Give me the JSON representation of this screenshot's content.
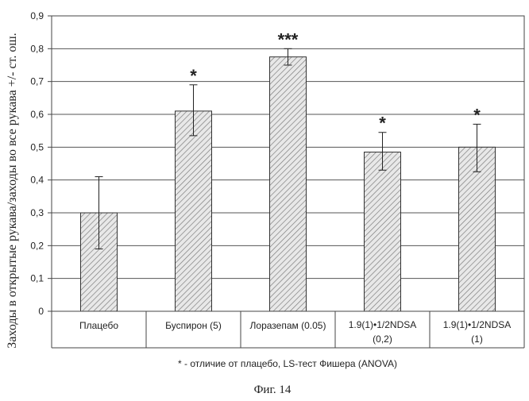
{
  "chart_data": {
    "type": "bar",
    "ylabel": "Заходы в открытые рукава/заходы во все рукава +/- ст. ош.",
    "ylim": [
      0,
      0.9
    ],
    "ytick_step": 0.1,
    "ytick_labels": [
      "0",
      "0,1",
      "0,2",
      "0,3",
      "0,4",
      "0,5",
      "0,6",
      "0,7",
      "0,8",
      "0,9"
    ],
    "grid": "horizontal",
    "categories": [
      [
        "Плацебо"
      ],
      [
        "Буспирон (5)"
      ],
      [
        "Лоразепам (0.05)"
      ],
      [
        "1.9(1)•1/2NDSA",
        "(0,2)"
      ],
      [
        "1.9(1)•1/2NDSA",
        "(1)"
      ]
    ],
    "values": [
      0.3,
      0.61,
      0.775,
      0.485,
      0.5
    ],
    "error_low": [
      0.19,
      0.535,
      0.75,
      0.43,
      0.425
    ],
    "error_high": [
      0.41,
      0.69,
      0.8,
      0.545,
      0.57
    ],
    "significance": [
      "",
      "*",
      "***",
      "*",
      "*"
    ],
    "bar_fill": "hatched grey"
  },
  "footnote": "* - отличие от плацебо, LS-тест Фишера (ANOVA)",
  "caption": "Фиг. 14",
  "colors": {
    "frame": "#444444",
    "grid": "#555555",
    "bar_stroke": "#333333",
    "hatch": "#777777",
    "bar_bg": "#e8e8e8"
  }
}
